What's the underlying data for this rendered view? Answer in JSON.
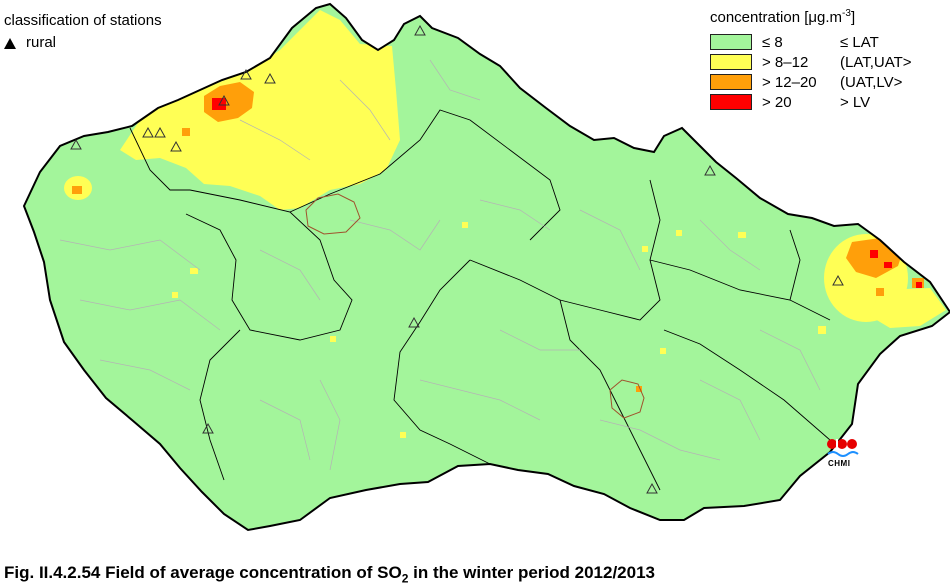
{
  "stations_legend": {
    "title": "classification of stations",
    "items": [
      {
        "symbol": "triangle-icon",
        "label": "rural"
      }
    ]
  },
  "concentration_legend": {
    "title_prefix": "concentration [μg.m",
    "title_exp": "-3",
    "title_suffix": "]",
    "classes": [
      {
        "label": "≤ 8",
        "range": "≤ LAT",
        "color": "#a3f59b"
      },
      {
        "label": "> 8–12",
        "range": "(LAT,UAT>",
        "color": "#ffff55"
      },
      {
        "label": "> 12–20",
        "range": "(UAT,LV>",
        "color": "#ff9f0a"
      },
      {
        "label": "> 20",
        "range": "> LV",
        "color": "#ff0000"
      }
    ]
  },
  "logo": {
    "text": "CHMI"
  },
  "caption": {
    "prefix": "Fig. II.4.2.54  Field of average concentration of SO",
    "sub": "2",
    "suffix": " in the winter period 2012/2013"
  },
  "colors": {
    "border": "#000000",
    "region_lines": "#8c8c8c",
    "district_lines": "#b4b4b4",
    "city_outline": "#a0522d"
  }
}
